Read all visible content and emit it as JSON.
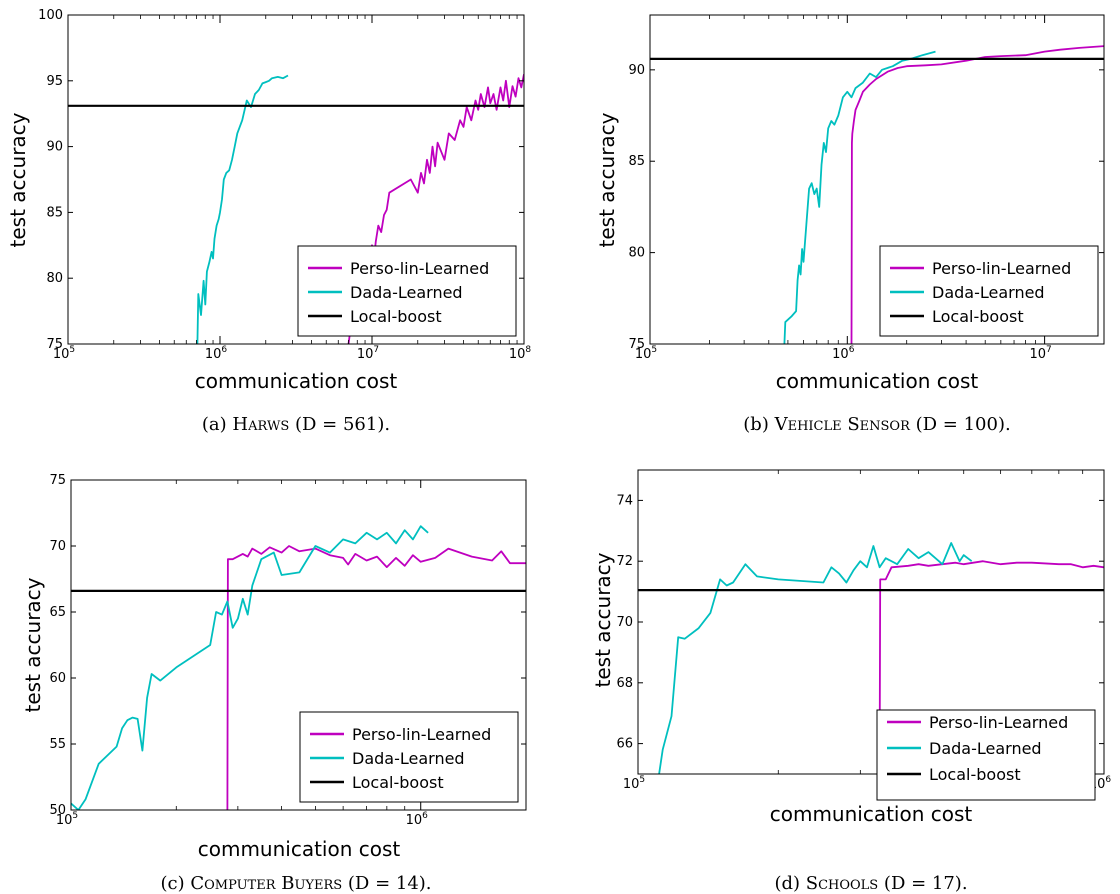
{
  "chart_data": [
    {
      "type": "line",
      "caption": {
        "prefix": "(a) ",
        "name": "Harws",
        "dim": " (D = 561)."
      },
      "xlabel": "communication cost",
      "ylabel": "test accuracy",
      "xscale": "log",
      "xlim": [
        100000,
        100000000
      ],
      "ylim": [
        75,
        100
      ],
      "yticks": [
        75,
        80,
        85,
        90,
        95,
        100
      ],
      "xticks": [
        {
          "value": 100000,
          "base": "10",
          "exp": "5"
        },
        {
          "value": 1000000,
          "base": "10",
          "exp": "6"
        },
        {
          "value": 10000000,
          "base": "10",
          "exp": "7"
        },
        {
          "value": 100000000,
          "base": "10",
          "exp": "8"
        }
      ],
      "legend": {
        "position": "lower-right",
        "entries": [
          "Perso-lin-Learned",
          "Dada-Learned",
          "Local-boost"
        ]
      },
      "series": [
        {
          "name": "Perso-lin-Learned",
          "color": "#bf00bf",
          "x": [
            7000000,
            7500000,
            8000000,
            8200000,
            8400000,
            8600000,
            9000000,
            9500000,
            9800000,
            10000000,
            10300000,
            10600000,
            11000000,
            11500000,
            12000000,
            12500000,
            13000000,
            18000000,
            20000000,
            21000000,
            22000000,
            23000000,
            24000000,
            25000000,
            26000000,
            27000000,
            30000000,
            32000000,
            35000000,
            38000000,
            40000000,
            42000000,
            45000000,
            48000000,
            50000000,
            52000000,
            55000000,
            58000000,
            60000000,
            63000000,
            66000000,
            70000000,
            73000000,
            76000000,
            80000000,
            84000000,
            88000000,
            92000000,
            96000000,
            100000000
          ],
          "y": [
            75,
            77.5,
            79,
            79.8,
            78.5,
            80,
            80.8,
            81,
            82,
            82.5,
            81.5,
            82.8,
            84,
            83.5,
            84.8,
            85.2,
            86.5,
            87.5,
            86.5,
            88,
            87.2,
            89,
            88,
            90,
            88.5,
            90.3,
            89,
            91,
            90.5,
            92,
            91.5,
            93,
            92,
            93.5,
            92.8,
            94,
            93,
            94.5,
            93.3,
            94,
            92.8,
            94.5,
            93.5,
            95,
            93,
            94.6,
            93.8,
            95.2,
            94.5,
            95.5
          ]
        },
        {
          "name": "Dada-Learned",
          "color": "#00bfbf",
          "x": [
            710000,
            720000,
            750000,
            780000,
            800000,
            820000,
            850000,
            880000,
            900000,
            920000,
            950000,
            980000,
            1000000,
            1030000,
            1060000,
            1100000,
            1150000,
            1200000,
            1250000,
            1300000,
            1400000,
            1500000,
            1600000,
            1700000,
            1800000,
            1900000,
            2000000,
            2100000,
            2200000,
            2400000,
            2600000,
            2800000
          ],
          "y": [
            75,
            78.8,
            77.2,
            79.8,
            78,
            80.5,
            81.2,
            82,
            81.5,
            83,
            84,
            84.5,
            85,
            86,
            87.5,
            88,
            88.2,
            89,
            90,
            91,
            92,
            93.5,
            93,
            94,
            94.3,
            94.8,
            94.9,
            95,
            95.2,
            95.3,
            95.2,
            95.4
          ]
        },
        {
          "name": "Local-boost",
          "color": "#000000",
          "x": [
            100000,
            100000000
          ],
          "y": [
            93.1,
            93.1
          ]
        }
      ]
    },
    {
      "type": "line",
      "caption": {
        "prefix": "(b) ",
        "name": "Vehicle Sensor",
        "dim": " (D = 100)."
      },
      "xlabel": "communication cost",
      "ylabel": "test accuracy",
      "xscale": "log",
      "xlim": [
        100000,
        20000000
      ],
      "ylim": [
        75,
        93
      ],
      "yticks": [
        75,
        80,
        85,
        90
      ],
      "xticks": [
        {
          "value": 100000,
          "base": "10",
          "exp": "5"
        },
        {
          "value": 1000000,
          "base": "10",
          "exp": "6"
        },
        {
          "value": 10000000,
          "base": "10",
          "exp": "7"
        }
      ],
      "legend": {
        "position": "lower-right",
        "entries": [
          "Perso-lin-Learned",
          "Dada-Learned",
          "Local-boost"
        ]
      },
      "series": [
        {
          "name": "Perso-lin-Learned",
          "color": "#bf00bf",
          "x": [
            1050000,
            1055000,
            1060000,
            1080000,
            1100000,
            1150000,
            1200000,
            1300000,
            1400000,
            1600000,
            1800000,
            2000000,
            2500000,
            3000000,
            4000000,
            5000000,
            6000000,
            8000000,
            10000000,
            12000000,
            15000000,
            20000000
          ],
          "y": [
            75,
            86,
            86.5,
            87.2,
            87.8,
            88.3,
            88.8,
            89.2,
            89.5,
            89.9,
            90.1,
            90.2,
            90.25,
            90.3,
            90.5,
            90.7,
            90.75,
            90.8,
            91,
            91.1,
            91.2,
            91.3
          ]
        },
        {
          "name": "Dada-Learned",
          "color": "#00bfbf",
          "x": [
            480000,
            485000,
            520000,
            550000,
            560000,
            570000,
            580000,
            590000,
            600000,
            620000,
            640000,
            660000,
            680000,
            700000,
            720000,
            740000,
            760000,
            780000,
            800000,
            830000,
            860000,
            900000,
            950000,
            1000000,
            1050000,
            1100000,
            1200000,
            1300000,
            1400000,
            1500000,
            1700000,
            1900000,
            2100000,
            2400000,
            2800000
          ],
          "y": [
            75,
            76.2,
            76.5,
            76.8,
            78.5,
            79.3,
            78.8,
            80.2,
            79.5,
            81.5,
            83.5,
            83.8,
            83.2,
            83.5,
            82.5,
            84.8,
            86,
            85.5,
            86.8,
            87.2,
            87,
            87.5,
            88.5,
            88.8,
            88.5,
            89,
            89.3,
            89.8,
            89.6,
            90,
            90.2,
            90.5,
            90.6,
            90.8,
            91
          ]
        },
        {
          "name": "Local-boost",
          "color": "#000000",
          "x": [
            100000,
            20000000
          ],
          "y": [
            90.6,
            90.6
          ]
        }
      ]
    },
    {
      "type": "line",
      "caption": {
        "prefix": "(c) ",
        "name": "Computer Buyers",
        "dim": " (D = 14)."
      },
      "xlabel": "communication cost",
      "ylabel": "test accuracy",
      "xscale": "log",
      "xlim": [
        100000,
        2000000
      ],
      "ylim": [
        50,
        75
      ],
      "yticks": [
        50,
        55,
        60,
        65,
        70,
        75
      ],
      "xticks": [
        {
          "value": 100000,
          "base": "10",
          "exp": "5"
        },
        {
          "value": 1000000,
          "base": "10",
          "exp": "6"
        }
      ],
      "legend": {
        "position": "lower-right",
        "entries": [
          "Perso-lin-Learned",
          "Dada-Learned",
          "Local-boost"
        ]
      },
      "series": [
        {
          "name": "Perso-lin-Learned",
          "color": "#bf00bf",
          "x": [
            280000,
            281000,
            290000,
            310000,
            320000,
            330000,
            350000,
            370000,
            400000,
            420000,
            450000,
            500000,
            550000,
            600000,
            620000,
            650000,
            700000,
            750000,
            800000,
            850000,
            900000,
            950000,
            1000000,
            1100000,
            1200000,
            1400000,
            1600000,
            1700000,
            1800000,
            2000000
          ],
          "y": [
            50,
            69,
            69,
            69.4,
            69.2,
            69.8,
            69.4,
            69.9,
            69.5,
            70,
            69.6,
            69.8,
            69.3,
            69.1,
            68.6,
            69.4,
            68.9,
            69.2,
            68.4,
            69.1,
            68.5,
            69.3,
            68.8,
            69.1,
            69.8,
            69.2,
            68.9,
            69.6,
            68.7,
            68.7
          ]
        },
        {
          "name": "Dada-Learned",
          "color": "#00bfbf",
          "x": [
            100000,
            105000,
            110000,
            120000,
            135000,
            140000,
            145000,
            150000,
            155000,
            160000,
            165000,
            170000,
            180000,
            200000,
            250000,
            260000,
            270000,
            280000,
            290000,
            300000,
            310000,
            320000,
            330000,
            350000,
            380000,
            400000,
            450000,
            500000,
            550000,
            600000,
            650000,
            700000,
            750000,
            800000,
            850000,
            900000,
            950000,
            1000000,
            1050000
          ],
          "y": [
            50.5,
            50,
            50.8,
            53.5,
            54.8,
            56.2,
            56.8,
            57,
            56.9,
            54.5,
            58.5,
            60.3,
            59.8,
            60.8,
            62.5,
            65,
            64.8,
            65.8,
            63.8,
            64.5,
            66,
            64.8,
            67,
            69,
            69.5,
            67.8,
            68,
            70,
            69.5,
            70.5,
            70.2,
            71,
            70.5,
            71,
            70.2,
            71.2,
            70.5,
            71.5,
            71
          ]
        },
        {
          "name": "Local-boost",
          "color": "#000000",
          "x": [
            100000,
            2000000
          ],
          "y": [
            66.6,
            66.6
          ]
        }
      ]
    },
    {
      "type": "line",
      "caption": {
        "prefix": "(d) ",
        "name": "Schools",
        "dim": " (D = 17)."
      },
      "xlabel": "communication cost",
      "ylabel": "test accuracy",
      "xscale": "log",
      "xlim": [
        100000,
        1000000
      ],
      "ylim": [
        65,
        75
      ],
      "yticks": [
        66,
        68,
        70,
        72,
        74
      ],
      "xticks": [
        {
          "value": 100000,
          "base": "10",
          "exp": "5"
        },
        {
          "value": 1000000,
          "base": "10",
          "exp": "6"
        }
      ],
      "legend": {
        "position": "lower-right",
        "entries": [
          "Perso-lin-Learned",
          "Dada-Learned",
          "Local-boost"
        ]
      },
      "series": [
        {
          "name": "Perso-lin-Learned",
          "color": "#bf00bf",
          "x": [
            330000,
            331000,
            340000,
            350000,
            380000,
            400000,
            420000,
            450000,
            480000,
            500000,
            550000,
            600000,
            650000,
            700000,
            800000,
            850000,
            900000,
            950000,
            1000000
          ],
          "y": [
            65,
            71.4,
            71.4,
            71.8,
            71.85,
            71.9,
            71.85,
            71.9,
            71.95,
            71.9,
            72,
            71.9,
            71.95,
            71.95,
            71.9,
            71.9,
            71.8,
            71.85,
            71.8
          ]
        },
        {
          "name": "Dada-Learned",
          "color": "#00bfbf",
          "x": [
            111000,
            113000,
            118000,
            122000,
            126000,
            135000,
            143000,
            150000,
            155000,
            160000,
            170000,
            180000,
            200000,
            250000,
            260000,
            270000,
            280000,
            290000,
            300000,
            310000,
            320000,
            330000,
            340000,
            360000,
            380000,
            400000,
            420000,
            450000,
            470000,
            490000,
            500000,
            520000
          ],
          "y": [
            65,
            65.8,
            66.9,
            69.5,
            69.45,
            69.8,
            70.3,
            71.4,
            71.2,
            71.3,
            71.9,
            71.5,
            71.4,
            71.3,
            71.8,
            71.6,
            71.3,
            71.7,
            72,
            71.8,
            72.5,
            71.8,
            72.1,
            71.9,
            72.4,
            72.1,
            72.3,
            71.9,
            72.6,
            72,
            72.2,
            72
          ]
        },
        {
          "name": "Local-boost",
          "color": "#000000",
          "x": [
            100000,
            1000000
          ],
          "y": [
            71.05,
            71.05
          ]
        }
      ]
    }
  ]
}
